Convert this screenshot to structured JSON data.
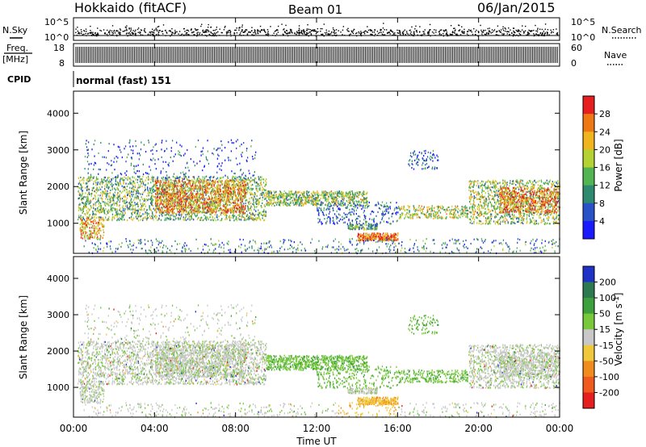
{
  "header": {
    "station": "Hokkaido (fitACF)",
    "beam": "Beam 01",
    "date": "06/Jan/2015"
  },
  "aux_panels": {
    "nsky_label": "N.Sky",
    "nsearch_label": "N.Search",
    "noise_ticks_left": [
      "10^5",
      "10^0"
    ],
    "noise_ticks_right": [
      "10^5",
      "10^0"
    ],
    "freq_label_line1": "Freq.",
    "freq_label_line2": "[MHz]",
    "freq_ticks": [
      "18",
      "8"
    ],
    "nave_label": "Nave",
    "nave_ticks": [
      "60",
      "0"
    ],
    "cpid_label": "CPID",
    "cpid_text": "normal (fast) 151"
  },
  "x_axis": {
    "title": "Time UT",
    "ticks": [
      "00:00",
      "04:00",
      "08:00",
      "12:00",
      "16:00",
      "20:00",
      "00:00"
    ]
  },
  "chart_data": [
    {
      "type": "heatmap",
      "panel": "power",
      "ylabel": "Slant Range [km]",
      "yticks": [
        1000,
        2000,
        3000,
        4000
      ],
      "ylim": [
        180,
        4600
      ],
      "xlim": [
        0,
        24
      ],
      "colorbar_label": "Power [dB]",
      "colorbar_ticks": [
        4,
        8,
        12,
        16,
        20,
        24,
        28
      ],
      "colorbar_range": [
        0,
        30
      ],
      "colorbar_colors": [
        "#1a1aff",
        "#2a52c8",
        "#2e8a6e",
        "#52b452",
        "#b4d232",
        "#f0b41e",
        "#f07814",
        "#e61e1e"
      ]
    },
    {
      "type": "heatmap",
      "panel": "velocity",
      "ylabel": "Slant Range [km]",
      "yticks": [
        1000,
        2000,
        3000,
        4000
      ],
      "ylim": [
        180,
        4600
      ],
      "xlim": [
        0,
        24
      ],
      "colorbar_label": "Velocity [m s-1]",
      "colorbar_ticks": [
        200,
        100,
        50,
        15,
        -15,
        -50,
        -100,
        -200
      ],
      "colorbar_colors": [
        "#1e32c8",
        "#2e7a50",
        "#3ca03c",
        "#78c83c",
        "#c8c8c8",
        "#f0c83c",
        "#f08c1e",
        "#f05a1e",
        "#e61e1e"
      ]
    }
  ]
}
